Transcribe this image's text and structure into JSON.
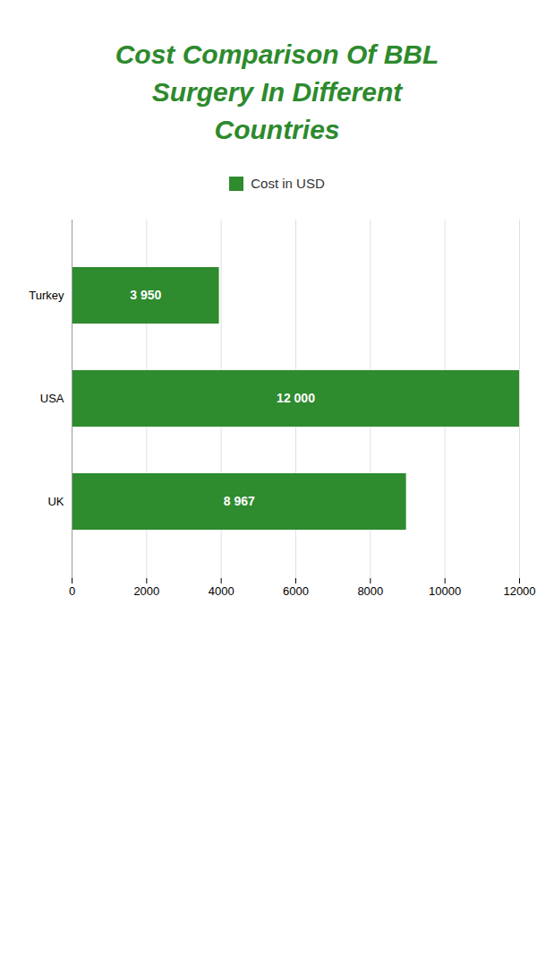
{
  "chart_data": {
    "type": "bar",
    "orientation": "horizontal",
    "title": "Cost Comparison Of BBL\nSurgery In Different\nCountries",
    "categories": [
      "UK",
      "USA",
      "Turkey"
    ],
    "series": [
      {
        "name": "Cost in USD",
        "color": "#2e8b2e",
        "values": [
          8967,
          12000,
          3950
        ],
        "value_labels": [
          "8 967",
          "12 000",
          "3 950"
        ]
      }
    ],
    "data_labels": true,
    "xlim": [
      0,
      12000
    ],
    "xticks": [
      0,
      2000,
      4000,
      6000,
      8000,
      10000,
      12000
    ],
    "grid": true,
    "legend": "top"
  }
}
